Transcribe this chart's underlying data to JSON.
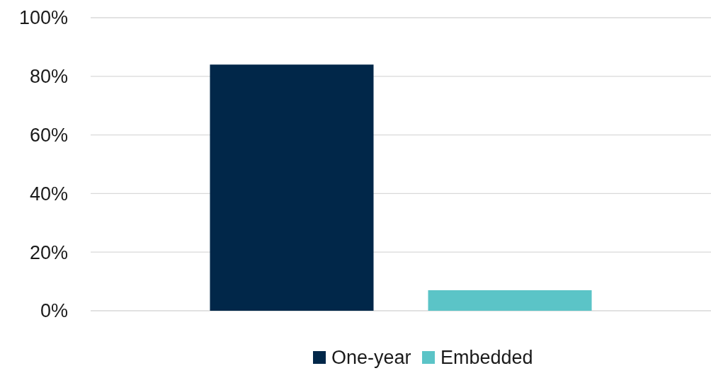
{
  "chart_data": {
    "type": "bar",
    "categories": [
      null
    ],
    "series": [
      {
        "name": "One-year",
        "color": "#012749",
        "values": [
          84
        ]
      },
      {
        "name": "Embedded",
        "color": "#5bc4c7",
        "values": [
          7
        ]
      }
    ],
    "ylim": [
      0,
      100
    ],
    "yticks": [
      {
        "value": 0,
        "label": "0%"
      },
      {
        "value": 20,
        "label": "20%"
      },
      {
        "value": 40,
        "label": "40%"
      },
      {
        "value": 60,
        "label": "60%"
      },
      {
        "value": 80,
        "label": "80%"
      },
      {
        "value": 100,
        "label": "100%"
      }
    ],
    "grid": "y",
    "legend": "bottom"
  }
}
